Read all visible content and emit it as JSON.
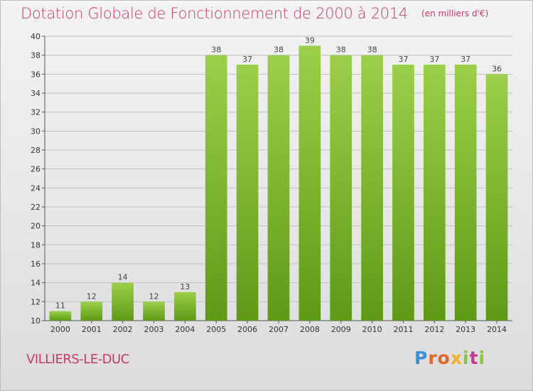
{
  "header": {
    "title": "Dotation Globale de Fonctionnement de 2000 à 2014",
    "unit": "(en milliers d'€)"
  },
  "footer": {
    "commune": "VILLIERS-LE-DUC",
    "logo": "Proxiti"
  },
  "colors": {
    "title": "#c43a6b",
    "bar_light": "#9ccf4a",
    "bar_dark": "#5e9a16",
    "grid": "#bfbfbf"
  },
  "chart_data": {
    "type": "bar",
    "title": "Dotation Globale de Fonctionnement de 2000 à 2014",
    "subtitle": "(en milliers d'€)",
    "xlabel": "",
    "ylabel": "",
    "categories": [
      "2000",
      "2001",
      "2002",
      "2003",
      "2004",
      "2005",
      "2006",
      "2007",
      "2008",
      "2009",
      "2010",
      "2011",
      "2012",
      "2013",
      "2014"
    ],
    "values": [
      11,
      12,
      14,
      12,
      13,
      38,
      37,
      38,
      39,
      38,
      38,
      37,
      37,
      37,
      36
    ],
    "ylim": [
      10,
      40
    ],
    "yticks": [
      10,
      12,
      14,
      16,
      18,
      20,
      22,
      24,
      26,
      28,
      30,
      32,
      34,
      36,
      38,
      40
    ],
    "grid": true,
    "legend": "none",
    "data_labels": true
  }
}
